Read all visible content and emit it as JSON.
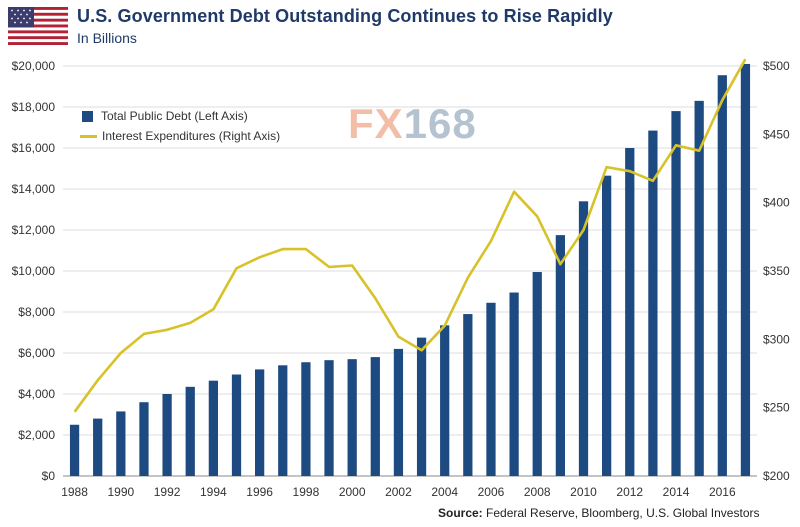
{
  "header": {
    "title": "U.S. Government Debt Outstanding Continues to Rise Rapidly",
    "subtitle": "In Billions",
    "flag_icon": "us-flag-icon"
  },
  "watermark": {
    "part1": "FX",
    "part2": "168"
  },
  "source": {
    "label": "Source:",
    "text": "Federal Reserve, Bloomberg, U.S. Global Investors"
  },
  "colors": {
    "debt_bar": "#1d4a80",
    "interest_line": "#d8c22a",
    "title": "#1f3a68"
  },
  "chart_data": {
    "type": "bar",
    "title": "U.S. Government Debt Outstanding Continues to Rise Rapidly",
    "subtitle": "In Billions",
    "categories": [
      "1988",
      "1989",
      "1990",
      "1991",
      "1992",
      "1993",
      "1994",
      "1995",
      "1996",
      "1997",
      "1998",
      "1999",
      "2000",
      "2001",
      "2002",
      "2003",
      "2004",
      "2005",
      "2006",
      "2007",
      "2008",
      "2009",
      "2010",
      "2011",
      "2012",
      "2013",
      "2014",
      "2015",
      "2016",
      "2017"
    ],
    "x_tick_labels": [
      "1988",
      "1990",
      "1992",
      "1994",
      "1996",
      "1998",
      "2000",
      "2002",
      "2004",
      "2006",
      "2008",
      "2010",
      "2012",
      "2014",
      "2016"
    ],
    "series": [
      {
        "name": "Total Public Debt (Left Axis)",
        "type": "bar",
        "axis": "left",
        "values": [
          2500,
          2800,
          3150,
          3600,
          4000,
          4350,
          4650,
          4950,
          5200,
          5400,
          5550,
          5650,
          5700,
          5800,
          6200,
          6750,
          7350,
          7900,
          8450,
          8950,
          9950,
          11750,
          13400,
          14650,
          16000,
          16850,
          17800,
          18300,
          19550,
          20100
        ]
      },
      {
        "name": "Interest Expenditures (Right Axis)",
        "type": "line",
        "axis": "right",
        "values": [
          247,
          270,
          290,
          304,
          307,
          312,
          322,
          352,
          360,
          366,
          366,
          353,
          354,
          330,
          302,
          292,
          310,
          345,
          372,
          408,
          390,
          355,
          380,
          426,
          423,
          416,
          442,
          438,
          475,
          505
        ]
      }
    ],
    "left_axis": {
      "min": 0,
      "max": 20000,
      "ticks": [
        "$0",
        "$2,000",
        "$4,000",
        "$6,000",
        "$8,000",
        "$10,000",
        "$12,000",
        "$14,000",
        "$16,000",
        "$18,000",
        "$20,000"
      ]
    },
    "right_axis": {
      "min": 200,
      "max": 500,
      "ticks": [
        "$200",
        "$250",
        "$300",
        "$350",
        "$400",
        "$450",
        "$500"
      ]
    },
    "grid": "horizontal",
    "legend_position": "top-left"
  }
}
